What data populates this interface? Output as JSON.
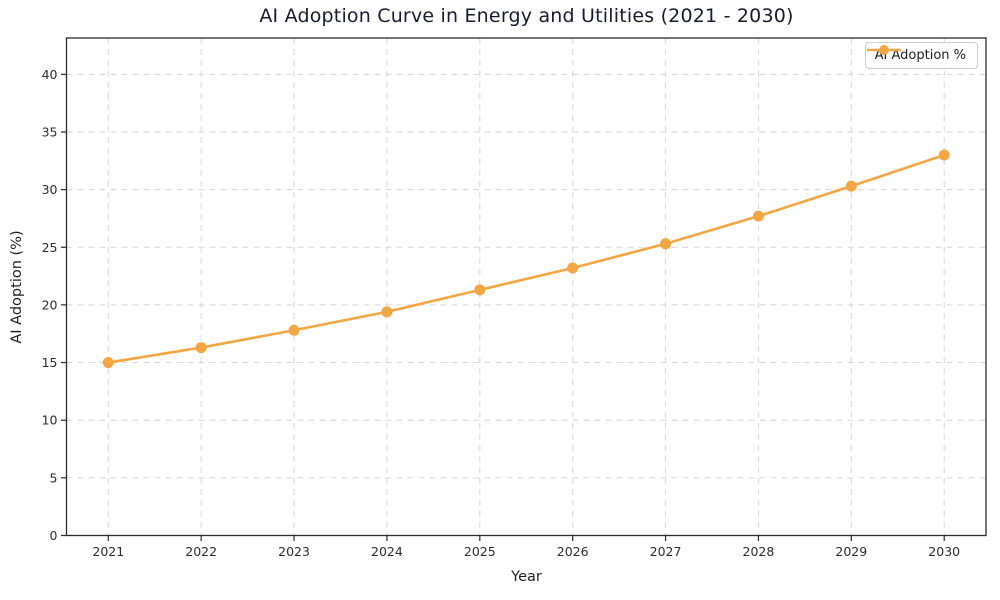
{
  "figure": {
    "title": "AI Adoption Curve in Energy and Utilities (2021 - 2030)",
    "xlabel": "Year",
    "ylabel": "AI Adoption (%)",
    "legend_label": "AI Adoption %"
  },
  "colors": {
    "line": "#F2A644",
    "marker": "#F2A644",
    "grid": "#D6D6D6",
    "spine": "#2B2B2B",
    "tick_label": "#2B2B2B",
    "title": "#1A1A2E",
    "legend_border": "#CCCCCC",
    "legend_bg": "#FFFFFF"
  },
  "chart_data": {
    "type": "line",
    "x": [
      2021,
      2022,
      2023,
      2024,
      2025,
      2026,
      2027,
      2028,
      2029,
      2030
    ],
    "series": [
      {
        "name": "AI Adoption %",
        "values": [
          15.0,
          16.3,
          17.8,
          19.4,
          21.3,
          23.2,
          25.3,
          27.7,
          30.3,
          33.0
        ]
      }
    ],
    "title": "AI Adoption Curve in Energy and Utilities (2021 - 2030)",
    "xlabel": "Year",
    "ylabel": "AI Adoption (%)",
    "xlim": [
      2020.55,
      2030.45
    ],
    "ylim": [
      0,
      43.15
    ],
    "yticks": [
      0,
      5,
      10,
      15,
      20,
      25,
      30,
      35,
      40
    ],
    "grid": true,
    "grid_style": "dashed",
    "marker": "o",
    "legend_position": "upper right"
  }
}
